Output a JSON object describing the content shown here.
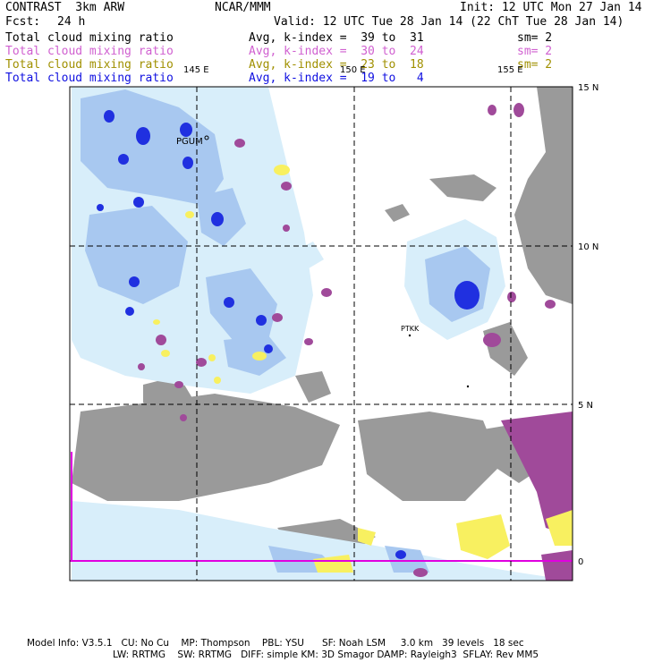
{
  "header": {
    "model": "CONTRAST  3km ARW",
    "org": "NCAR/MMM",
    "init": "Init: 12 UTC Mon 27 Jan 14",
    "fcst_label": "Fcst:",
    "fcst_value": "24 h",
    "valid": "Valid: 12 UTC Tue 28 Jan 14 (22 ChT Tue 28 Jan 14)"
  },
  "legend": [
    {
      "field": "Total cloud mixing ratio",
      "stat": "Avg, k-index =  39 to  31",
      "smooth": "sm= 2",
      "color": "#000000"
    },
    {
      "field": "Total cloud mixing ratio",
      "stat": "Avg, k-index =  30 to  24",
      "smooth": "sm= 2",
      "color": "#d060d0"
    },
    {
      "field": "Total cloud mixing ratio",
      "stat": "Avg, k-index =  23 to  18",
      "smooth": "sm= 2",
      "color": "#a09000"
    },
    {
      "field": "Total cloud mixing ratio",
      "stat": "Avg, k-index =  19 to   4",
      "smooth": "",
      "color": "#1010e0"
    }
  ],
  "map": {
    "lon_labels": [
      "145 E",
      "150 E",
      "155 E"
    ],
    "lat_labels": [
      "15 N",
      "10 N",
      "5 N",
      "0"
    ],
    "stations": [
      "PGUM",
      "PTKK"
    ]
  },
  "colors": {
    "land": "#9a9a9a",
    "cloud_light": "#d8eefa",
    "cloud_mid": "#a8c8f0",
    "cloud_heavy": "#2030e0",
    "mid_level": "#a04a9a",
    "low_level": "#f8f060",
    "equator_line": "#e000e0"
  },
  "footer": {
    "line1": "Model Info: V3.5.1   CU: No Cu    MP: Thompson    PBL: YSU      SF: Noah LSM     3.0 km   39 levels   18 sec",
    "line2": "LW: RRTMG    SW: RRTMG   DIFF: simple KM: 3D Smagor DAMP: Rayleigh3  SFLAY: Rev MM5"
  }
}
